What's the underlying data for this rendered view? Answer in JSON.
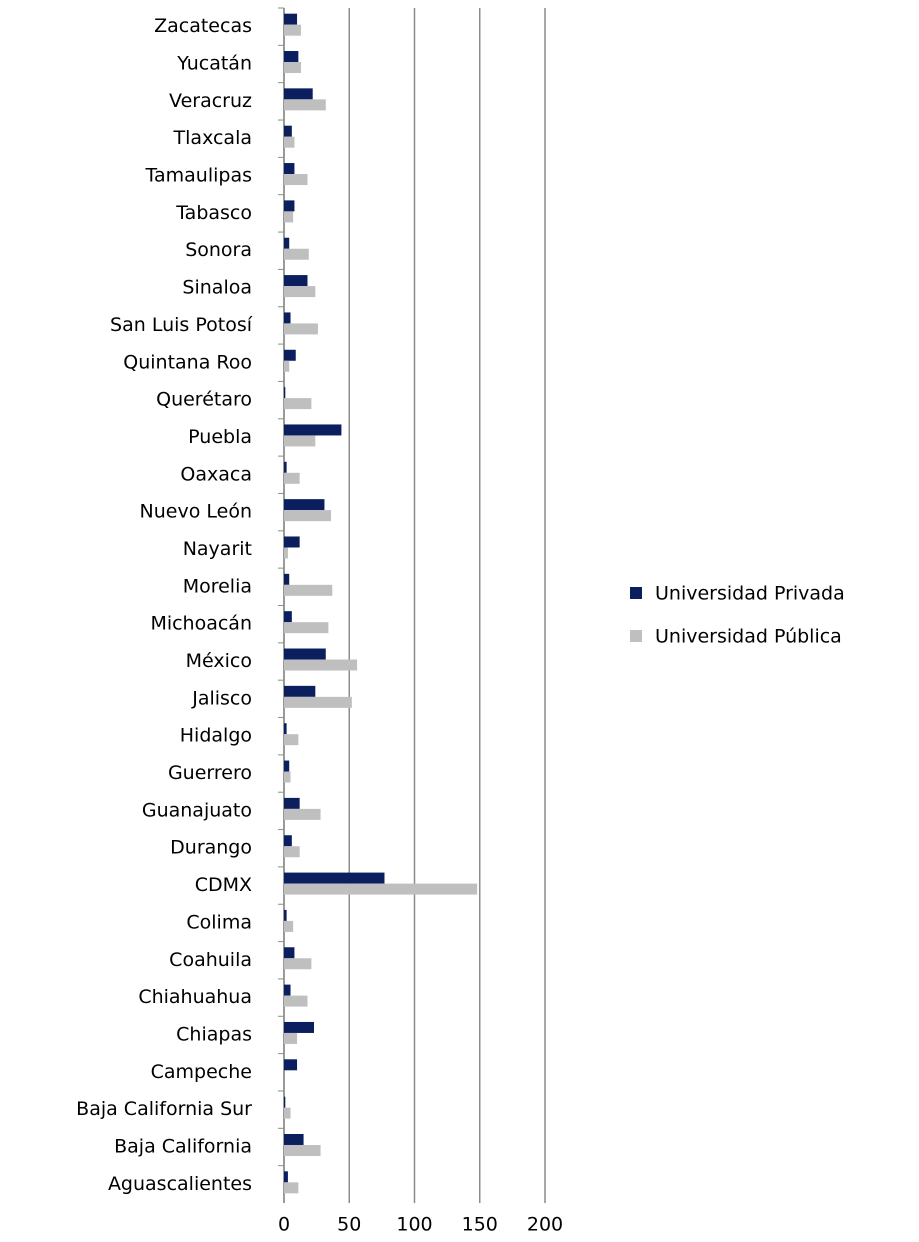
{
  "chart_data": {
    "type": "barh",
    "categories": [
      "Zacatecas",
      "Yucatán",
      "Veracruz",
      "Tlaxcala",
      "Tamaulipas",
      "Tabasco",
      "Sonora",
      "Sinaloa",
      "San Luis Potosí",
      "Quintana Roo",
      "Querétaro",
      "Puebla",
      "Oaxaca",
      "Nuevo León",
      "Nayarit",
      "Morelia",
      "Michoacán",
      "México",
      "Jalisco",
      "Hidalgo",
      "Guerrero",
      "Guanajuato",
      "Durango",
      "CDMX",
      "Colima",
      "Coahuila",
      "Chiahuahua",
      "Chiapas",
      "Campeche",
      "Baja California Sur",
      "Baja California",
      "Aguascalientes"
    ],
    "series": [
      {
        "name": "Universidad Privada",
        "color": "#0b1f5e",
        "values": [
          10,
          11,
          22,
          6,
          8,
          8,
          4,
          18,
          5,
          9,
          1,
          44,
          2,
          31,
          12,
          4,
          6,
          32,
          24,
          2,
          4,
          12,
          6,
          77,
          2,
          8,
          5,
          23,
          10,
          1,
          15,
          3
        ]
      },
      {
        "name": "Universidad Pública",
        "color": "#bfbfbf",
        "values": [
          13,
          13,
          32,
          8,
          18,
          7,
          19,
          24,
          26,
          4,
          21,
          24,
          12,
          36,
          3,
          37,
          34,
          56,
          52,
          11,
          5,
          28,
          12,
          148,
          7,
          21,
          18,
          10,
          0,
          5,
          28,
          11
        ]
      }
    ],
    "xlim": [
      0,
      200
    ],
    "xticks": [
      0,
      50,
      100,
      150,
      200
    ],
    "grid": true,
    "legend": "right"
  }
}
